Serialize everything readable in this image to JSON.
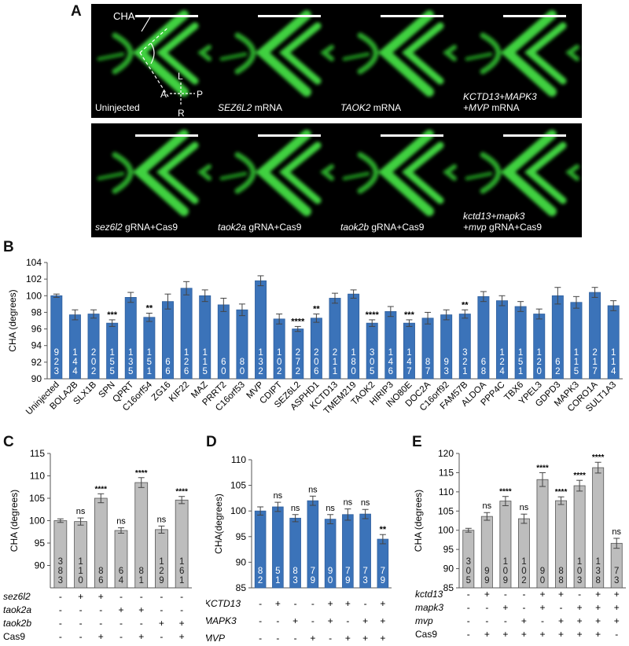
{
  "panel_letters": {
    "a": "A",
    "b": "B",
    "c": "C",
    "d": "D",
    "e": "E"
  },
  "panel_a": {
    "row1": [
      {
        "italic": "",
        "rest": "Uninjected",
        "line2": ""
      },
      {
        "italic": "SEZ6L2",
        "rest": " mRNA",
        "line2": ""
      },
      {
        "italic": "TAOK2",
        "rest": " mRNA",
        "line2": ""
      },
      {
        "italic": "KCTD13+MAPK3",
        "rest": "",
        "line2_italic": "+MVP",
        "line2": " mRNA"
      }
    ],
    "row2": [
      {
        "italic": "sez6l2",
        "rest": " gRNA+Cas9",
        "line2": ""
      },
      {
        "italic": "taok2a",
        "rest": " gRNA+Cas9",
        "line2": ""
      },
      {
        "italic": "taok2b",
        "rest": " gRNA+Cas9",
        "line2": ""
      },
      {
        "italic": "kctd13+mapk3",
        "rest": "",
        "line2_italic": "+mvp",
        "line2": " gRNA+Cas9"
      }
    ],
    "annot": {
      "cha": "CHA",
      "L": "L",
      "R": "R",
      "A": "A",
      "P": "P"
    }
  },
  "chart_data": [
    {
      "id": "B",
      "type": "bar",
      "ylabel": "CHA (degrees)",
      "ylim": [
        90,
        104
      ],
      "yticks": [
        90,
        92,
        94,
        96,
        98,
        100,
        102,
        104
      ],
      "color": "#3b73b9",
      "categories": [
        "Uninjected",
        "BOLA2B",
        "SLX1B",
        "SPN",
        "QPRT",
        "C16orf54",
        "ZG16",
        "KIF22",
        "MAZ",
        "PRRT2",
        "C16orf53",
        "MVP",
        "CDIPT",
        "SEZ6L2",
        "ASPHD1",
        "KCTD13",
        "TMEM219",
        "TAOK2",
        "HIRIP3",
        "INO80E",
        "DOC2A",
        "C16orf92",
        "FAM57B",
        "ALDOA",
        "PPP4C",
        "TBX6",
        "YPEL3",
        "GDPD3",
        "MAPK3",
        "CORO1A",
        "SULT1A3"
      ],
      "values": [
        100.0,
        97.7,
        97.8,
        96.7,
        99.8,
        97.4,
        99.3,
        100.9,
        100.0,
        98.9,
        98.3,
        101.8,
        97.2,
        96.0,
        97.3,
        99.7,
        100.2,
        96.7,
        98.1,
        96.7,
        97.3,
        97.7,
        97.8,
        99.9,
        99.4,
        98.7,
        97.8,
        100.0,
        99.2,
        100.4,
        98.8
      ],
      "errors": [
        0.2,
        0.6,
        0.5,
        0.4,
        0.6,
        0.5,
        0.9,
        0.8,
        0.7,
        0.8,
        0.7,
        0.6,
        0.6,
        0.3,
        0.5,
        0.6,
        0.5,
        0.4,
        0.6,
        0.4,
        0.7,
        0.6,
        0.5,
        0.6,
        0.6,
        0.6,
        0.6,
        1.0,
        0.7,
        0.6,
        0.6
      ],
      "n": [
        "923",
        "144",
        "202",
        "155",
        "135",
        "151",
        "66",
        "126",
        "115",
        "60",
        "80",
        "132",
        "102",
        "272",
        "206",
        "211",
        "180",
        "305",
        "146",
        "147",
        "87",
        "93",
        "321",
        "68",
        "124",
        "151",
        "120",
        "62",
        "115",
        "217",
        "114"
      ],
      "sig": [
        "",
        "",
        "",
        "***",
        "",
        "**",
        "",
        "",
        "",
        "",
        "",
        "",
        "",
        "****",
        "**",
        "",
        "",
        "****",
        "",
        "***",
        "",
        "",
        "**",
        "",
        "",
        "",
        "",
        "",
        "",
        "",
        ""
      ]
    },
    {
      "id": "C",
      "type": "bar",
      "ylabel": "CHA (degrees)",
      "ylim": [
        85,
        115
      ],
      "yticks": [
        90,
        95,
        100,
        105,
        110,
        115
      ],
      "color": "#bdbdbd",
      "values": [
        100.0,
        99.8,
        105.0,
        97.8,
        108.5,
        98.0,
        104.6
      ],
      "errors": [
        0.4,
        0.8,
        1.0,
        0.6,
        1.1,
        0.8,
        0.8
      ],
      "n": [
        "383",
        "110",
        "86",
        "64",
        "81",
        "129",
        "161"
      ],
      "sig": [
        "",
        "ns",
        "****",
        "ns",
        "****",
        "ns",
        "****"
      ],
      "conditions": [
        {
          "label": "sez6l2",
          "italic": true,
          "marks": [
            "-",
            "+",
            "+",
            "-",
            "-",
            "-",
            "-"
          ]
        },
        {
          "label": "taok2a",
          "italic": true,
          "marks": [
            "-",
            "-",
            "-",
            "+",
            "+",
            "-",
            "-"
          ]
        },
        {
          "label": "taok2b",
          "italic": true,
          "marks": [
            "-",
            "-",
            "-",
            "-",
            "-",
            "+",
            "+"
          ]
        },
        {
          "label": "Cas9",
          "italic": false,
          "marks": [
            "-",
            "-",
            "+",
            "-",
            "+",
            "-",
            "+"
          ]
        }
      ]
    },
    {
      "id": "D",
      "type": "bar",
      "ylabel": "CHA(degrees)",
      "ylim": [
        85,
        110
      ],
      "yticks": [
        85,
        90,
        95,
        100,
        105,
        110
      ],
      "color": "#3b73b9",
      "values": [
        100.0,
        100.8,
        98.6,
        102.0,
        98.4,
        99.3,
        99.4,
        94.5
      ],
      "errors": [
        0.8,
        0.9,
        0.7,
        0.9,
        0.9,
        1.1,
        0.9,
        0.9
      ],
      "n": [
        "82",
        "51",
        "83",
        "79",
        "90",
        "79",
        "73",
        "79"
      ],
      "sig": [
        "",
        "ns",
        "ns",
        "ns",
        "ns",
        "ns",
        "ns",
        "**"
      ],
      "conditions": [
        {
          "label": "KCTD13",
          "italic": true,
          "marks": [
            "-",
            "+",
            "-",
            "-",
            "+",
            "+",
            "-",
            "+"
          ]
        },
        {
          "label": "MAPK3",
          "italic": true,
          "marks": [
            "-",
            "-",
            "+",
            "-",
            "+",
            "-",
            "+",
            "+"
          ]
        },
        {
          "label": "MVP",
          "italic": true,
          "marks": [
            "-",
            "-",
            "-",
            "+",
            "-",
            "+",
            "+",
            "+"
          ]
        }
      ]
    },
    {
      "id": "E",
      "type": "bar",
      "ylabel": "CHA (degrees)",
      "ylim": [
        85,
        120
      ],
      "yticks": [
        85,
        90,
        95,
        100,
        105,
        110,
        115,
        120
      ],
      "color": "#bdbdbd",
      "values": [
        100.0,
        103.6,
        107.6,
        103.0,
        113.2,
        107.7,
        111.6,
        116.3,
        96.6
      ],
      "errors": [
        0.5,
        1.0,
        1.2,
        1.2,
        1.8,
        1.0,
        1.4,
        1.4,
        1.3
      ],
      "n": [
        "305",
        "99",
        "109",
        "102",
        "90",
        "88",
        "103",
        "138",
        "73"
      ],
      "sig": [
        "",
        "ns",
        "****",
        "ns",
        "****",
        "****",
        "****",
        "****",
        "ns"
      ],
      "conditions": [
        {
          "label": "kctd13",
          "italic": true,
          "marks": [
            "-",
            "+",
            "-",
            "-",
            "+",
            "+",
            "-",
            "+",
            "+"
          ]
        },
        {
          "label": "mapk3",
          "italic": true,
          "marks": [
            "-",
            "-",
            "+",
            "-",
            "+",
            "-",
            "+",
            "+",
            "+"
          ]
        },
        {
          "label": "mvp",
          "italic": true,
          "marks": [
            "-",
            "-",
            "-",
            "+",
            "-",
            "+",
            "+",
            "+",
            "+"
          ]
        },
        {
          "label": "Cas9",
          "italic": false,
          "marks": [
            "-",
            "+",
            "+",
            "+",
            "+",
            "+",
            "+",
            "+",
            "-"
          ]
        }
      ]
    }
  ]
}
